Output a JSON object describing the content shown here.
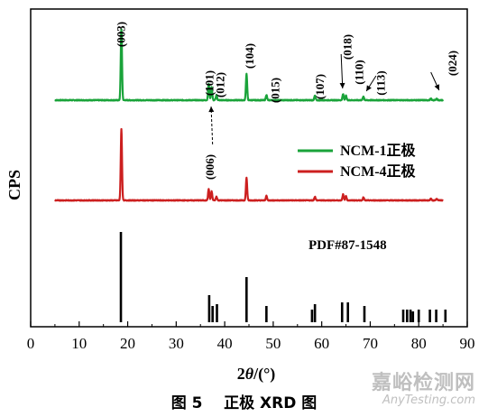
{
  "chart_data": {
    "type": "line",
    "xlabel_prefix": "2",
    "xlabel_theta": "θ",
    "xlabel_suffix": "/(°)",
    "ylabel": "CPS",
    "xlim": [
      0,
      90
    ],
    "xticks": [
      0,
      10,
      20,
      30,
      40,
      50,
      60,
      70,
      80,
      90
    ],
    "grid": false,
    "legend_position": "right-middle",
    "series": [
      {
        "name": "NCM-1正极",
        "color": "#1aa33a",
        "baseline": 0,
        "peaks": [
          [
            18.7,
            95
          ],
          [
            36.7,
            22
          ],
          [
            37.3,
            18
          ],
          [
            38.3,
            7
          ],
          [
            44.5,
            35
          ],
          [
            48.6,
            7
          ],
          [
            58.6,
            6
          ],
          [
            64.4,
            8
          ],
          [
            65.0,
            6
          ],
          [
            68.6,
            5
          ],
          [
            82.5,
            2
          ],
          [
            83.7,
            2
          ]
        ]
      },
      {
        "name": "NCM-4正极",
        "color": "#cc1f1f",
        "baseline": 0,
        "peaks": [
          [
            18.7,
            95
          ],
          [
            36.7,
            15
          ],
          [
            37.3,
            12
          ],
          [
            38.3,
            5
          ],
          [
            44.5,
            30
          ],
          [
            48.6,
            6
          ],
          [
            58.6,
            5
          ],
          [
            64.4,
            8
          ],
          [
            65.0,
            6
          ],
          [
            68.6,
            4
          ],
          [
            82.5,
            2
          ],
          [
            83.7,
            2
          ]
        ]
      }
    ],
    "reference": {
      "name": "PDF#87-1548",
      "color": "#000000",
      "sticks": [
        [
          18.6,
          100
        ],
        [
          36.8,
          30
        ],
        [
          37.5,
          18
        ],
        [
          38.4,
          20
        ],
        [
          44.5,
          50
        ],
        [
          48.6,
          18
        ],
        [
          58.0,
          14
        ],
        [
          58.6,
          20
        ],
        [
          64.2,
          22
        ],
        [
          65.4,
          22
        ],
        [
          68.8,
          18
        ],
        [
          76.8,
          14
        ],
        [
          77.6,
          14
        ],
        [
          78.3,
          14
        ],
        [
          78.8,
          12
        ],
        [
          80.0,
          14
        ],
        [
          82.3,
          14
        ],
        [
          83.6,
          14
        ],
        [
          85.5,
          14
        ]
      ]
    },
    "annotations": [
      {
        "text": "(003)",
        "x": 18.7
      },
      {
        "text": "(101)",
        "x": 36.9
      },
      {
        "text": "(006)",
        "x": 37.0
      },
      {
        "text": "(012)",
        "x": 39.1
      },
      {
        "text": "(104)",
        "x": 45.2
      },
      {
        "text": "(015)",
        "x": 50.5
      },
      {
        "text": "(107)",
        "x": 59.7
      },
      {
        "text": "(018)",
        "x": 65.4
      },
      {
        "text": "(110)",
        "x": 67.8
      },
      {
        "text": "(113)",
        "x": 72.2
      },
      {
        "text": "(024)",
        "x": 87.0
      }
    ]
  },
  "caption": {
    "figure_number": "图 5",
    "text": "正极 XRD 图"
  },
  "watermark": {
    "cn": "嘉峪检测网",
    "en": "AnyTesting.com"
  }
}
